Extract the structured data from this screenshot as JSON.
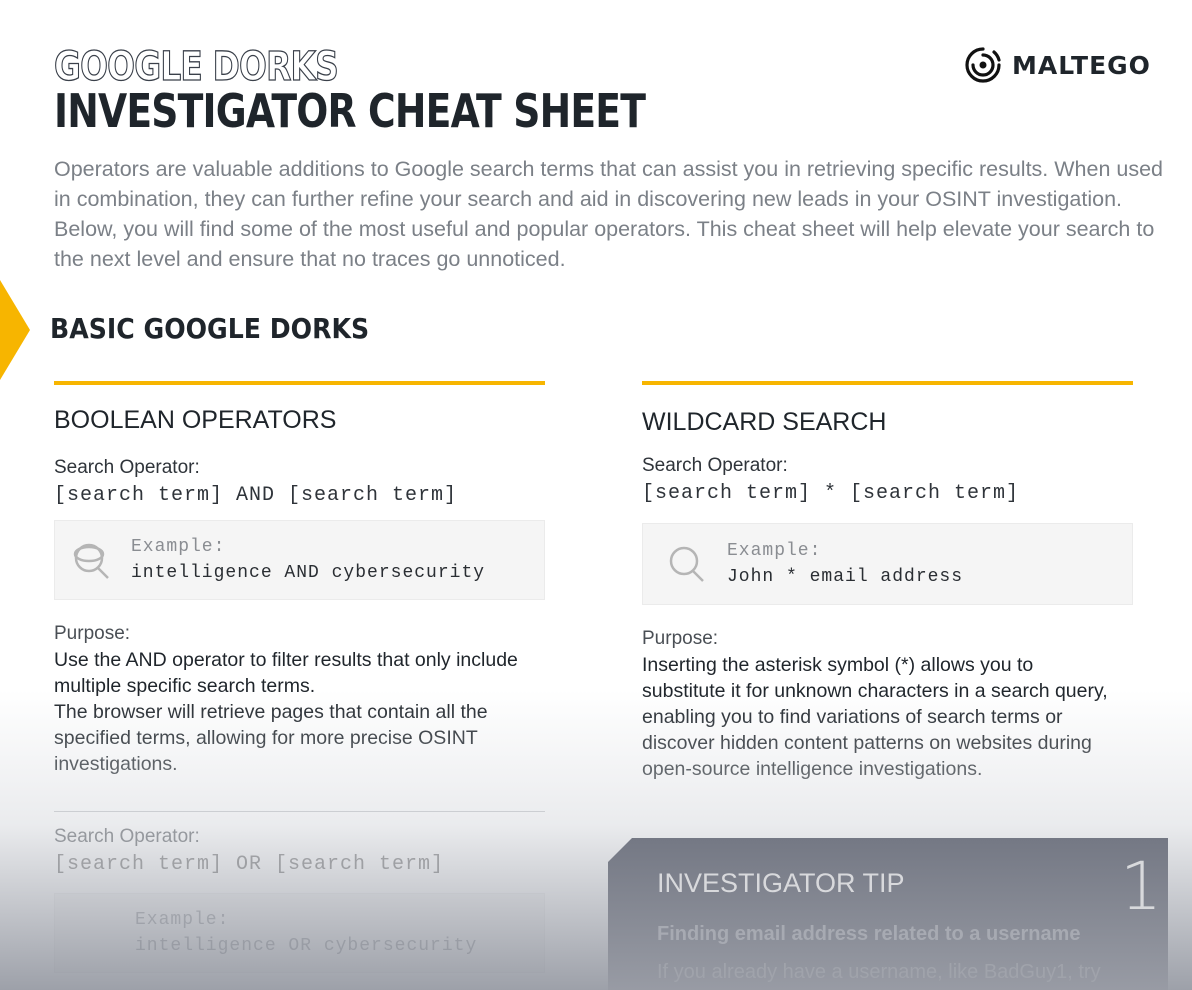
{
  "header": {
    "title_outline": "GOOGLE DORKS",
    "title": "INVESTIGATOR CHEAT SHEET",
    "logo": "MALTEGO"
  },
  "intro": "Operators are valuable additions to Google search terms that can assist you in retrieving specific results. When used in combination, they can further refine your search and aid in discovering new leads in your OSINT investigation. Below, you will find some of the most useful and popular operators. This cheat sheet will help elevate your search to the next level and ensure that no traces go unnoticed.",
  "section_title": "BASIC GOOGLE DORKS",
  "accent": "#f7b500",
  "left": {
    "title": "BOOLEAN OPERATORS",
    "op_label": "Search Operator:",
    "op": "[search term] AND [search term]",
    "ex_label": "Example:",
    "ex": "intelligence AND cybersecurity",
    "icon": "search-globe-icon",
    "purpose_label": "Purpose:",
    "purpose": "Use the AND operator to filter results that only include multiple specific search terms.",
    "purpose2": "The browser will retrieve pages that contain all the specified terms, allowing for more precise OSINT investigations.",
    "op2_label": "Search Operator:",
    "op2": "[search term] OR [search term]",
    "ex2_label": "Example:",
    "ex2": "intelligence OR cybersecurity"
  },
  "right": {
    "title": "WILDCARD SEARCH",
    "op_label": "Search Operator:",
    "op": "[search term] * [search term]",
    "ex_label": "Example:",
    "ex": "John * email address",
    "icon": "search-icon",
    "purpose_label": "Purpose:",
    "purpose": "Inserting the asterisk symbol (*) allows you to substitute it for unknown characters in a search query, enabling you to find variations of search terms or discover hidden content patterns on websites during open-source intelligence investigations."
  },
  "tip": {
    "title": "INVESTIGATOR TIP",
    "number": "1",
    "heading": "Finding email address related to a username",
    "text": "If you already have a username, like BadGuy1, try"
  }
}
